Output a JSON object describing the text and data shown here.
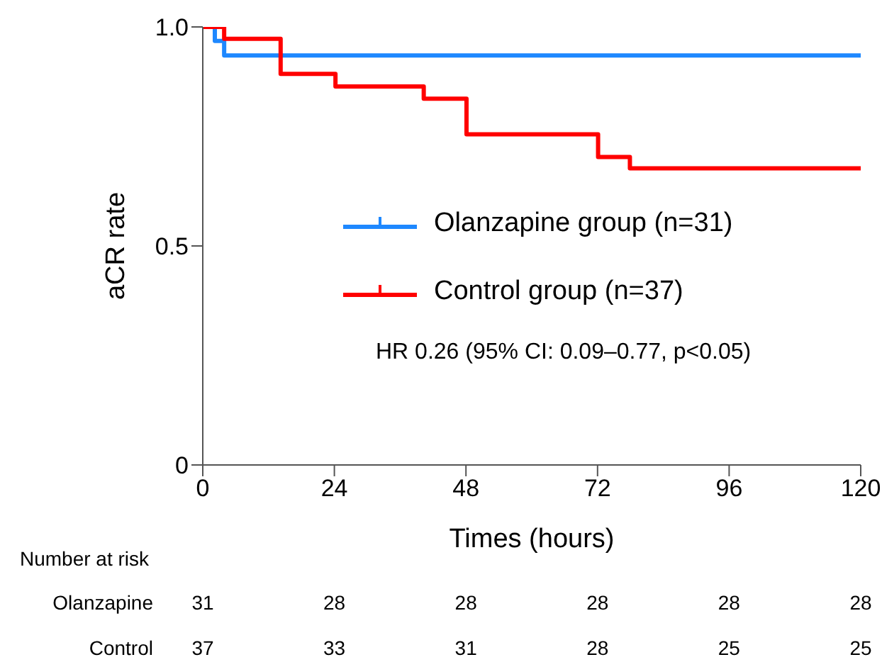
{
  "chart_data": {
    "type": "step",
    "xlabel": "Times (hours)",
    "ylabel": "aCR rate",
    "xlim": [
      0,
      120
    ],
    "xticks": [
      0,
      24,
      48,
      72,
      96,
      120
    ],
    "ylim": [
      0,
      1
    ],
    "yticks": [
      0,
      0.5,
      {
        "value": 1,
        "label": "1.0"
      }
    ],
    "legend": "right",
    "marker": "none",
    "line_style": "solid",
    "series": [
      {
        "name": "Olanzapine group (n=31)",
        "color": "#1e88ff",
        "x": [
          0,
          2.2,
          3.9,
          120
        ],
        "values": [
          1,
          0.968,
          0.935,
          0.935
        ]
      },
      {
        "name": "Control group (n=37)",
        "color": "#ff0000",
        "x": [
          0,
          3.9,
          14.2,
          24.2,
          40.3,
          48.1,
          72.1,
          77.9,
          120
        ],
        "values": [
          1,
          0.973,
          0.893,
          0.864,
          0.836,
          0.755,
          0.703,
          0.677,
          0.677
        ]
      }
    ],
    "annotations": [
      "HR 0.26 (95% CI: 0.09–0.77, p<0.05)",
      "Number at risk",
      "Olanzapine",
      "31",
      "28",
      "28",
      "28",
      "28",
      "28",
      "Control",
      "37",
      "33",
      "31",
      "28",
      "25",
      "25"
    ]
  }
}
